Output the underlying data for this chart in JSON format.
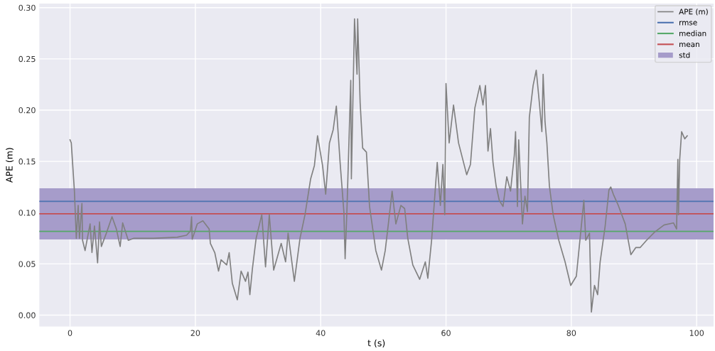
{
  "chart_data": {
    "type": "line",
    "xlabel": "t (s)",
    "ylabel": "APE (m)",
    "xlim": [
      -4.9,
      102.7
    ],
    "ylim": [
      -0.011,
      0.304
    ],
    "xticks": [
      0,
      20,
      40,
      60,
      80,
      100
    ],
    "yticks": [
      {
        "value": 0,
        "label": "0.00"
      },
      {
        "value": 0.05,
        "label": "0.05"
      },
      {
        "value": 0.1,
        "label": "0.10"
      },
      {
        "value": 0.15,
        "label": "0.15"
      },
      {
        "value": 0.2,
        "label": "0.20"
      },
      {
        "value": 0.25,
        "label": "0.25"
      },
      {
        "value": 0.3,
        "label": "0.30"
      }
    ],
    "grid": true,
    "legend": "top right",
    "series": [
      {
        "name": "APE (m)",
        "color": "#808080",
        "x": [
          0,
          0.2,
          0.7,
          1.0,
          1.3,
          1.5,
          1.9,
          2.0,
          2.4,
          3.2,
          3.5,
          3.9,
          4.4,
          4.7,
          5.0,
          5.8,
          6.7,
          7.4,
          8.0,
          8.4,
          9.3,
          10.2,
          13.3,
          17.1,
          18.6,
          19.2,
          19.4,
          19.5,
          20.3,
          21.2,
          22.2,
          22.4,
          23.1,
          23.7,
          24.1,
          25.0,
          25.4,
          25.9,
          26.7,
          27.3,
          28.0,
          28.4,
          28.7,
          29.1,
          29.7,
          30.6,
          31.2,
          31.8,
          32.5,
          33.7,
          34.4,
          34.8,
          35.8,
          36.7,
          37.5,
          38.4,
          39.0,
          39.5,
          40.3,
          40.8,
          41.4,
          42.0,
          42.5,
          43.1,
          43.7,
          43.9,
          44.2,
          44.8,
          44.9,
          45.4,
          45.8,
          45.9,
          46.3,
          46.7,
          47.3,
          47.8,
          48.8,
          49.7,
          50.3,
          50.8,
          51.4,
          52.0,
          52.8,
          53.4,
          53.9,
          54.7,
          55.8,
          56.7,
          57.1,
          57.7,
          58.6,
          59.1,
          59.5,
          59.8,
          60.0,
          60.5,
          61.2,
          62.0,
          63.3,
          63.9,
          64.6,
          65.4,
          65.9,
          66.3,
          66.7,
          67.1,
          67.5,
          68.0,
          68.5,
          69.1,
          69.7,
          70.3,
          70.9,
          71.1,
          71.4,
          71.6,
          72.2,
          72.6,
          73.0,
          73.3,
          73.9,
          74.4,
          74.9,
          75.3,
          75.5,
          75.8,
          76.1,
          76.5,
          77.1,
          78.0,
          79.0,
          79.9,
          80.8,
          81.4,
          82.0,
          82.3,
          82.9,
          83.2,
          83.7,
          84.2,
          84.6,
          85.4,
          86.0,
          86.3,
          86.7,
          87.5,
          88.6,
          89.5,
          90.3,
          91.0,
          92.0,
          93.3,
          94.8,
          96.3,
          96.8,
          97.0,
          97.1,
          97.3,
          97.6,
          98.1,
          98.5
        ],
        "values": [
          0.171,
          0.168,
          0.121,
          0.075,
          0.107,
          0.075,
          0.109,
          0.073,
          0.063,
          0.089,
          0.061,
          0.087,
          0.051,
          0.091,
          0.067,
          0.08,
          0.096,
          0.084,
          0.067,
          0.09,
          0.073,
          0.075,
          0.075,
          0.076,
          0.078,
          0.082,
          0.096,
          0.074,
          0.089,
          0.092,
          0.084,
          0.07,
          0.061,
          0.043,
          0.054,
          0.049,
          0.061,
          0.031,
          0.015,
          0.043,
          0.033,
          0.042,
          0.02,
          0.045,
          0.075,
          0.098,
          0.047,
          0.098,
          0.044,
          0.07,
          0.052,
          0.08,
          0.033,
          0.075,
          0.098,
          0.133,
          0.146,
          0.175,
          0.146,
          0.118,
          0.168,
          0.181,
          0.204,
          0.149,
          0.101,
          0.055,
          0.104,
          0.229,
          0.133,
          0.289,
          0.235,
          0.289,
          0.207,
          0.163,
          0.159,
          0.106,
          0.063,
          0.044,
          0.063,
          0.089,
          0.121,
          0.089,
          0.107,
          0.104,
          0.075,
          0.049,
          0.035,
          0.052,
          0.036,
          0.073,
          0.149,
          0.107,
          0.147,
          0.098,
          0.226,
          0.168,
          0.205,
          0.168,
          0.137,
          0.147,
          0.202,
          0.224,
          0.205,
          0.224,
          0.16,
          0.182,
          0.149,
          0.126,
          0.112,
          0.106,
          0.135,
          0.121,
          0.156,
          0.179,
          0.106,
          0.171,
          0.089,
          0.116,
          0.101,
          0.193,
          0.224,
          0.239,
          0.207,
          0.179,
          0.235,
          0.189,
          0.168,
          0.126,
          0.098,
          0.073,
          0.052,
          0.029,
          0.038,
          0.075,
          0.112,
          0.073,
          0.08,
          0.003,
          0.029,
          0.02,
          0.052,
          0.087,
          0.122,
          0.125,
          0.118,
          0.107,
          0.089,
          0.059,
          0.066,
          0.066,
          0.073,
          0.081,
          0.088,
          0.09,
          0.084,
          0.152,
          0.098,
          0.152,
          0.179,
          0.172,
          0.175
        ]
      }
    ],
    "ref_lines": [
      {
        "axis": "y",
        "value": 0.111,
        "label": "rmse",
        "color": "#4c72b0"
      },
      {
        "axis": "y",
        "value": 0.0817,
        "label": "median",
        "color": "#55a868"
      },
      {
        "axis": "y",
        "value": 0.0989,
        "label": "mean",
        "color": "#c44e52"
      }
    ],
    "bands": [
      {
        "axis": "y",
        "from": 0.0738,
        "to": 0.1237,
        "label": "std",
        "color": "#a69cca"
      }
    ]
  }
}
